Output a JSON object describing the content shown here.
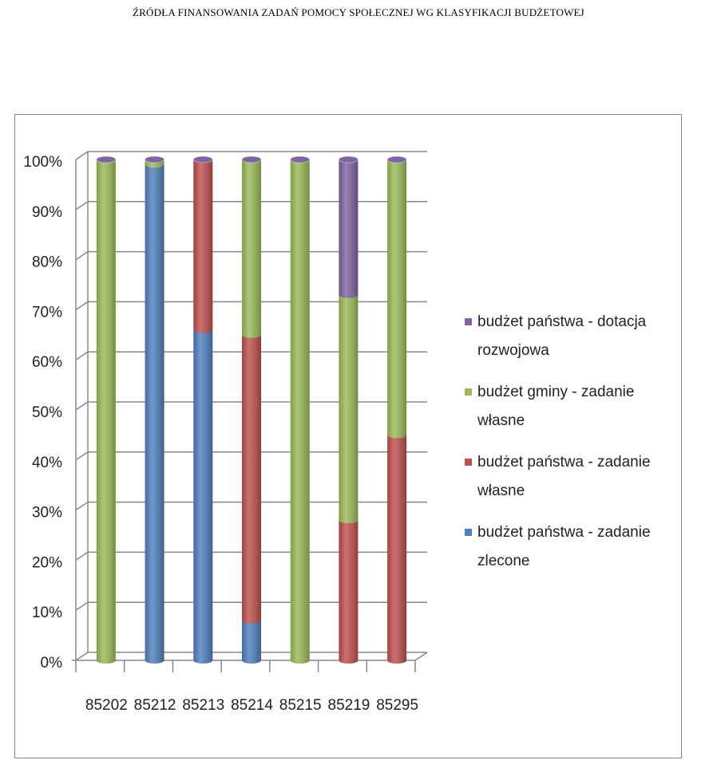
{
  "chart_data": {
    "type": "bar",
    "stacked": true,
    "title": "ŹRÓDŁA  FINANSOWANIA ZADAŃ POMOCY SPOŁECZNEJ  WG KLASYFIKACJI BUDŻETOWEJ",
    "categories": [
      "85202",
      "85212",
      "85213",
      "85214",
      "85215",
      "85219",
      "85295"
    ],
    "series": [
      {
        "name": "budżet państwa - zadanie zlecone",
        "color": "#4f81bd",
        "values": [
          0,
          99,
          66,
          8,
          0,
          0,
          0
        ]
      },
      {
        "name": "budżet państwa - zadanie własne",
        "color": "#c0504d",
        "values": [
          0,
          0,
          34,
          57,
          0,
          28,
          45
        ]
      },
      {
        "name": "budżet gminy - zadanie własne",
        "color": "#9bbb59",
        "values": [
          100,
          1,
          0,
          35,
          100,
          45,
          55
        ]
      },
      {
        "name": "budżet państwa - dotacja rozwojowa",
        "color": "#8064a2",
        "values": [
          0,
          0,
          0,
          0,
          0,
          27,
          0
        ]
      }
    ],
    "ylim": [
      0,
      100
    ],
    "yticks": [
      {
        "value": 0,
        "label": "0%"
      },
      {
        "value": 10,
        "label": "10%"
      },
      {
        "value": 20,
        "label": "20%"
      },
      {
        "value": 30,
        "label": "30%"
      },
      {
        "value": 40,
        "label": "40%"
      },
      {
        "value": 50,
        "label": "50%"
      },
      {
        "value": 60,
        "label": "60%"
      },
      {
        "value": 70,
        "label": "70%"
      },
      {
        "value": 80,
        "label": "80%"
      },
      {
        "value": 90,
        "label": "90%"
      },
      {
        "value": 100,
        "label": "100%"
      }
    ],
    "grid": true,
    "legend": "right"
  }
}
